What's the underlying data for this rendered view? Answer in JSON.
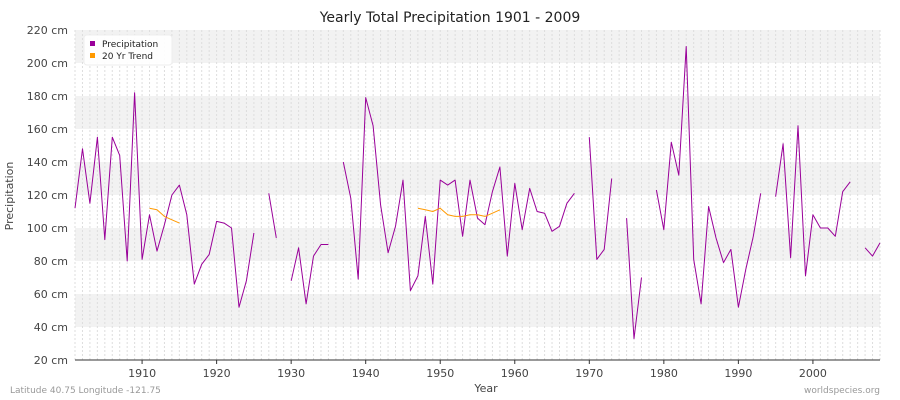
{
  "chart_data": {
    "type": "line",
    "title": "Yearly Total Precipitation 1901 - 2009",
    "xlabel": "Year",
    "ylabel": "Precipitation",
    "unit": "cm",
    "xlim": [
      1901,
      2009
    ],
    "ylim": [
      20,
      220
    ],
    "x_ticks": [
      1910,
      1920,
      1930,
      1940,
      1950,
      1960,
      1970,
      1980,
      1990,
      2000
    ],
    "y_ticks": [
      20,
      40,
      60,
      80,
      100,
      120,
      140,
      160,
      180,
      200,
      220
    ],
    "y_tick_labels": [
      "20 cm",
      "40 cm",
      "60 cm",
      "80 cm",
      "100 cm",
      "120 cm",
      "140 cm",
      "160 cm",
      "180 cm",
      "200 cm",
      "220 cm"
    ],
    "grid": true,
    "legend_position": "top-left",
    "series": [
      {
        "name": "Precipitation",
        "color": "#990099",
        "points": [
          [
            1901,
            112
          ],
          [
            1902,
            148
          ],
          [
            1903,
            115
          ],
          [
            1904,
            155
          ],
          [
            1905,
            93
          ],
          [
            1906,
            155
          ],
          [
            1907,
            144
          ],
          [
            1908,
            80
          ],
          [
            1909,
            182
          ],
          [
            1910,
            81
          ],
          [
            1911,
            108
          ],
          [
            1912,
            86
          ],
          [
            1913,
            102
          ],
          [
            1914,
            120
          ],
          [
            1915,
            126
          ],
          [
            1916,
            108
          ],
          [
            1917,
            66
          ],
          [
            1918,
            78
          ],
          [
            1919,
            84
          ],
          [
            1920,
            104
          ],
          [
            1921,
            103
          ],
          [
            1922,
            100
          ],
          [
            1923,
            52
          ],
          [
            1924,
            68
          ],
          [
            1925,
            97
          ],
          [
            1926,
            null
          ],
          [
            1927,
            121
          ],
          [
            1928,
            94
          ],
          [
            1929,
            null
          ],
          [
            1930,
            68
          ],
          [
            1931,
            88
          ],
          [
            1932,
            54
          ],
          [
            1933,
            83
          ],
          [
            1934,
            90
          ],
          [
            1935,
            90
          ],
          [
            1936,
            null
          ],
          [
            1937,
            140
          ],
          [
            1938,
            118
          ],
          [
            1939,
            69
          ],
          [
            1940,
            179
          ],
          [
            1941,
            162
          ],
          [
            1942,
            114
          ],
          [
            1943,
            85
          ],
          [
            1944,
            101
          ],
          [
            1945,
            129
          ],
          [
            1946,
            62
          ],
          [
            1947,
            71
          ],
          [
            1948,
            107
          ],
          [
            1949,
            66
          ],
          [
            1950,
            129
          ],
          [
            1951,
            126
          ],
          [
            1952,
            129
          ],
          [
            1953,
            95
          ],
          [
            1954,
            129
          ],
          [
            1955,
            106
          ],
          [
            1956,
            102
          ],
          [
            1957,
            122
          ],
          [
            1958,
            137
          ],
          [
            1959,
            83
          ],
          [
            1960,
            127
          ],
          [
            1961,
            99
          ],
          [
            1962,
            124
          ],
          [
            1963,
            110
          ],
          [
            1964,
            109
          ],
          [
            1965,
            98
          ],
          [
            1966,
            101
          ],
          [
            1967,
            115
          ],
          [
            1968,
            121
          ],
          [
            1969,
            null
          ],
          [
            1970,
            155
          ],
          [
            1971,
            81
          ],
          [
            1972,
            87
          ],
          [
            1973,
            130
          ],
          [
            1974,
            null
          ],
          [
            1975,
            106
          ],
          [
            1976,
            33
          ],
          [
            1977,
            70
          ],
          [
            1978,
            null
          ],
          [
            1979,
            123
          ],
          [
            1980,
            99
          ],
          [
            1981,
            152
          ],
          [
            1982,
            132
          ],
          [
            1983,
            210
          ],
          [
            1984,
            81
          ],
          [
            1985,
            54
          ],
          [
            1986,
            113
          ],
          [
            1987,
            94
          ],
          [
            1988,
            79
          ],
          [
            1989,
            87
          ],
          [
            1990,
            52
          ],
          [
            1991,
            75
          ],
          [
            1992,
            95
          ],
          [
            1993,
            121
          ],
          [
            1994,
            null
          ],
          [
            1995,
            119
          ],
          [
            1996,
            151
          ],
          [
            1997,
            82
          ],
          [
            1998,
            162
          ],
          [
            1999,
            71
          ],
          [
            2000,
            108
          ],
          [
            2001,
            100
          ],
          [
            2002,
            100
          ],
          [
            2003,
            95
          ],
          [
            2004,
            122
          ],
          [
            2005,
            128
          ],
          [
            2006,
            null
          ],
          [
            2007,
            88
          ],
          [
            2008,
            83
          ],
          [
            2009,
            91
          ]
        ]
      },
      {
        "name": "20 Yr Trend",
        "color": "#ff9900",
        "points": [
          [
            1911,
            112
          ],
          [
            1912,
            111
          ],
          [
            1913,
            107
          ],
          [
            1914,
            105
          ],
          [
            1915,
            103
          ],
          [
            1916,
            null
          ],
          [
            1947,
            112
          ],
          [
            1948,
            111
          ],
          [
            1949,
            110
          ],
          [
            1950,
            112
          ],
          [
            1951,
            108
          ],
          [
            1952,
            107
          ],
          [
            1953,
            107
          ],
          [
            1954,
            108
          ],
          [
            1955,
            108
          ],
          [
            1956,
            107
          ],
          [
            1957,
            109
          ],
          [
            1958,
            111
          ]
        ]
      }
    ]
  },
  "footer": {
    "left": "Latitude 40.75 Longitude -121.75",
    "right": "worldspecies.org"
  }
}
